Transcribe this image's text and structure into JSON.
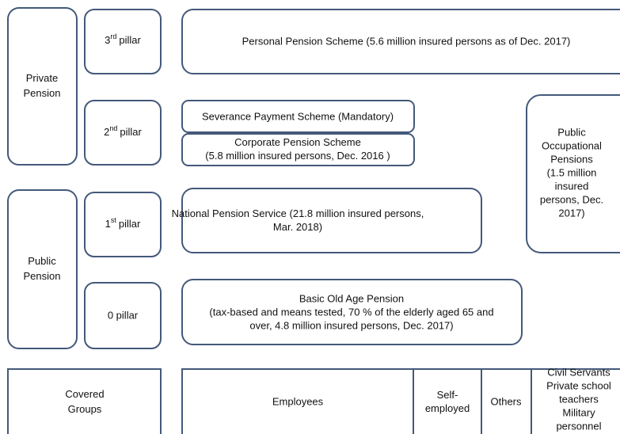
{
  "private_pension": {
    "lines": [
      "Private",
      "Pension"
    ]
  },
  "public_pension": {
    "lines": [
      "Public",
      "Pension"
    ]
  },
  "pillars": [
    {
      "number": "3",
      "suffix": "rd",
      "word": "pillar"
    },
    {
      "number": "2",
      "suffix": "nd",
      "word": "pillar"
    },
    {
      "number": "1",
      "suffix": "st",
      "word": "pillar"
    },
    {
      "label": "0 pillar"
    }
  ],
  "schemes": {
    "personal": "Personal Pension Scheme (5.6 million insured persons as of  Dec. 2017)",
    "severance": "Severance Payment Scheme (Mandatory)",
    "corporate": [
      "Corporate Pension Scheme",
      "(5.8 million insured persons, Dec. 2016 )"
    ],
    "occupational": [
      "Public",
      "Occupational",
      "Pensions",
      "(1.5 million",
      "insured",
      "persons, Dec.",
      "2017)"
    ],
    "national": [
      "National Pension Service (21.8 million insured persons,",
      "Mar. 2018)"
    ],
    "basic": [
      "Basic Old Age Pension",
      "(tax-based and means tested, 70 % of the elderly aged 65 and",
      "over, 4.8 million insured persons, Dec. 2017)"
    ]
  },
  "covered_groups": {
    "title": [
      "Covered",
      "Groups"
    ],
    "employees": "Employees",
    "self_employed": [
      "Self-",
      "employed"
    ],
    "others": "Others",
    "civil": [
      "Civil Servants",
      "Private school",
      "teachers",
      "Military",
      "personnel"
    ]
  }
}
